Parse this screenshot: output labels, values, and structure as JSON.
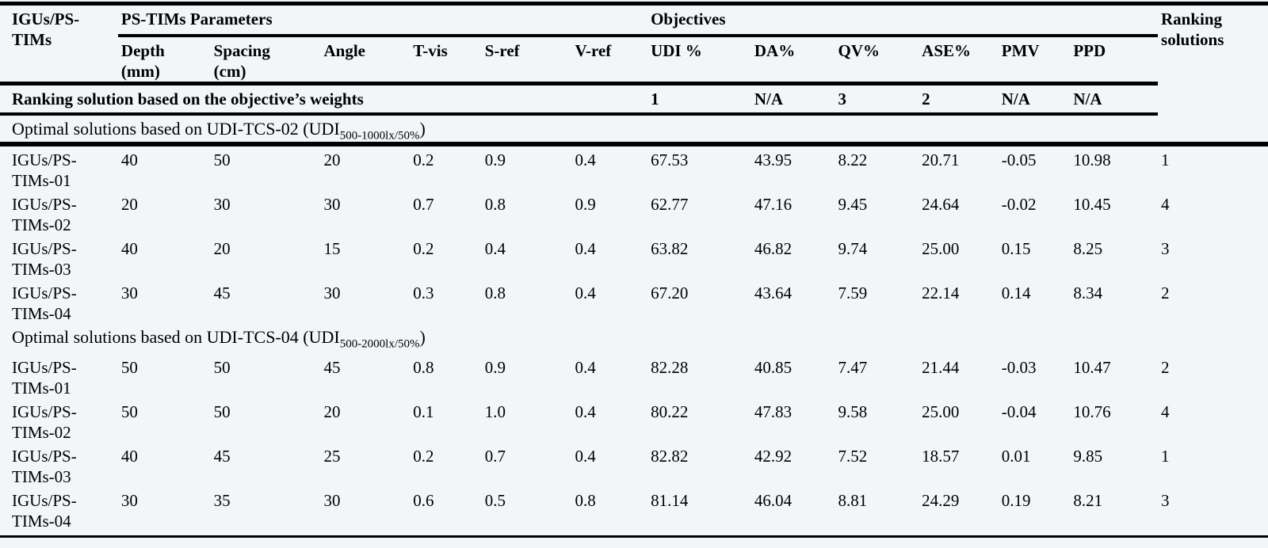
{
  "colors": {
    "background": "#f2f6f9",
    "rule": "#000000",
    "text": "#000000"
  },
  "header": {
    "row_label": "IGUs/PS-\nTIMs",
    "params_group": "PS-TIMs Parameters",
    "objectives_group": "Objectives",
    "ranking": "Ranking\nsolutions",
    "param_columns": [
      "Depth\n(mm)",
      "Spacing\n(cm)",
      "Angle",
      "T-vis",
      "S-ref",
      "V-ref"
    ],
    "objective_columns": [
      "UDI %",
      "DA%",
      "QV%",
      "ASE%",
      "PMV",
      "PPD"
    ]
  },
  "weights_row": {
    "label": "Ranking solution based on the objective’s weights",
    "values": [
      "1",
      "N/A",
      "3",
      "2",
      "N/A",
      "N/A"
    ]
  },
  "groups": [
    {
      "title": "Optimal solutions based on UDI-TCS-02 (UDI",
      "title_subscript": "500-1000lx/50%",
      "title_close": ")",
      "rows": [
        {
          "name": "IGUs/PS-\nTIMs-01",
          "params": [
            "40",
            "50",
            "20",
            "0.2",
            "0.9",
            "0.4"
          ],
          "objectives": [
            "67.53",
            "43.95",
            "8.22",
            "20.71",
            "-0.05",
            "10.98"
          ],
          "rank": "1"
        },
        {
          "name": "IGUs/PS-\nTIMs-02",
          "params": [
            "20",
            "30",
            "30",
            "0.7",
            "0.8",
            "0.9"
          ],
          "objectives": [
            "62.77",
            "47.16",
            "9.45",
            "24.64",
            "-0.02",
            "10.45"
          ],
          "rank": "4"
        },
        {
          "name": "IGUs/PS-\nTIMs-03",
          "params": [
            "40",
            "20",
            "15",
            "0.2",
            "0.4",
            "0.4"
          ],
          "objectives": [
            "63.82",
            "46.82",
            "9.74",
            "25.00",
            "0.15",
            "8.25"
          ],
          "rank": "3"
        },
        {
          "name": "IGUs/PS-\nTIMs-04",
          "params": [
            "30",
            "45",
            "30",
            "0.3",
            "0.8",
            "0.4"
          ],
          "objectives": [
            "67.20",
            "43.64",
            "7.59",
            "22.14",
            "0.14",
            "8.34"
          ],
          "rank": "2"
        }
      ]
    },
    {
      "title": "Optimal solutions based on UDI-TCS-04 (UDI",
      "title_subscript": "500-2000lx/50%",
      "title_close": ")",
      "rows": [
        {
          "name": "IGUs/PS-\nTIMs-01",
          "params": [
            "50",
            "50",
            "45",
            "0.8",
            "0.9",
            "0.4"
          ],
          "objectives": [
            "82.28",
            "40.85",
            "7.47",
            "21.44",
            "-0.03",
            "10.47"
          ],
          "rank": "2"
        },
        {
          "name": "IGUs/PS-\nTIMs-02",
          "params": [
            "50",
            "50",
            "20",
            "0.1",
            "1.0",
            "0.4"
          ],
          "objectives": [
            "80.22",
            "47.83",
            "9.58",
            "25.00",
            "-0.04",
            "10.76"
          ],
          "rank": "4"
        },
        {
          "name": "IGUs/PS-\nTIMs-03",
          "params": [
            "40",
            "45",
            "25",
            "0.2",
            "0.7",
            "0.4"
          ],
          "objectives": [
            "82.82",
            "42.92",
            "7.52",
            "18.57",
            "0.01",
            "9.85"
          ],
          "rank": "1"
        },
        {
          "name": "IGUs/PS-\nTIMs-04",
          "params": [
            "30",
            "35",
            "30",
            "0.6",
            "0.5",
            "0.8"
          ],
          "objectives": [
            "81.14",
            "46.04",
            "8.81",
            "24.29",
            "0.19",
            "8.21"
          ],
          "rank": "3"
        }
      ]
    }
  ]
}
